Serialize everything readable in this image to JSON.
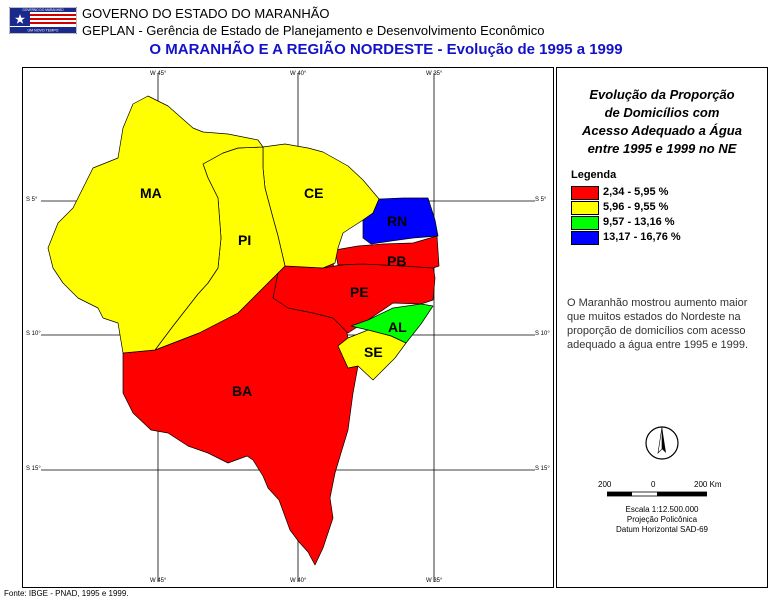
{
  "header": {
    "line1": "GOVERNO DO ESTADO DO MARANHÃO",
    "line2": "GEPLAN - Gerência de Estado de Planejamento e Desenvolvimento Econômico",
    "title": "O MARANHÃO E A REGIÃO NORDESTE - Evolução de 1995 a 1999"
  },
  "logo": {
    "icon": "maranhao-flag-logo",
    "caption": "GOVERNO DO MARANHÃO",
    "motto": "UM NOVO TEMPO"
  },
  "map": {
    "longitude_labels": [
      "W 45°",
      "W 40°",
      "W 35°"
    ],
    "latitude_labels": [
      "S 5°",
      "S 10°",
      "S 15°"
    ],
    "states": [
      {
        "code": "MA",
        "category": "5,96 - 9,55 %"
      },
      {
        "code": "PI",
        "category": "5,96 - 9,55 %"
      },
      {
        "code": "CE",
        "category": "5,96 - 9,55 %"
      },
      {
        "code": "RN",
        "category": "13,17 - 16,76 %"
      },
      {
        "code": "PB",
        "category": "2,34 - 5,95 %"
      },
      {
        "code": "PE",
        "category": "2,34 - 5,95 %"
      },
      {
        "code": "AL",
        "category": "9,57 - 13,16 %"
      },
      {
        "code": "SE",
        "category": "5,96 - 9,55 %"
      },
      {
        "code": "BA",
        "category": "2,34 - 5,95 %"
      }
    ]
  },
  "panel": {
    "title_lines": [
      "Evolução da Proporção",
      "de Domicílios com",
      "Acesso Adequado a Água",
      "entre 1995 e 1999 no NE"
    ],
    "legend_heading": "Legenda",
    "legend": [
      {
        "label": "2,34 - 5,95 %",
        "color": "#ff0000"
      },
      {
        "label": "5,96 - 9,55 %",
        "color": "#ffff00"
      },
      {
        "label": "9,57 - 13,16 %",
        "color": "#00ff00"
      },
      {
        "label": "13,17 - 16,76 %",
        "color": "#0000ff"
      }
    ],
    "description": "O Maranhão mostrou aumento maior que muitos estados do Nordeste na proporção de domicílios com acesso adequado a água entre 1995 e 1999.",
    "north_icon": "north-arrow-icon",
    "scale_ticks": [
      "200",
      "0",
      "200 Km"
    ],
    "scale_lines": [
      "Escala 1:12.500.000",
      "Projeção Policônica",
      "Datum Horizontal SAD-69"
    ]
  },
  "source": "Fonte: IBGE - PNAD, 1995 e 1999."
}
